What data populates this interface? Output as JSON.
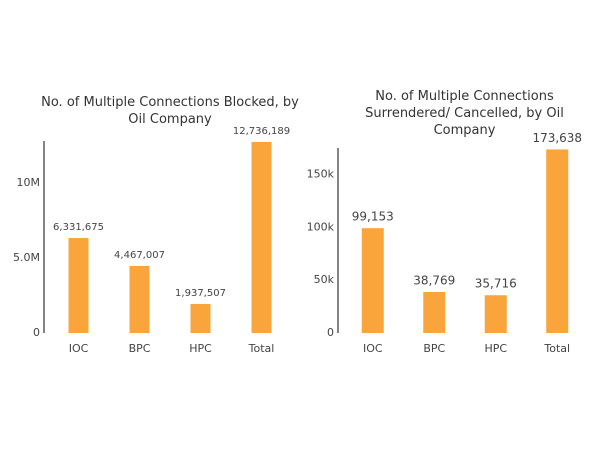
{
  "chart_data": [
    {
      "type": "bar",
      "title": "No. of Multiple Connections Blocked, by Oil Company",
      "categories": [
        "IOC",
        "BPC",
        "HPC",
        "Total"
      ],
      "values": [
        6331675,
        4467007,
        1937507,
        12736189
      ],
      "value_labels": [
        "6,331,675",
        "4,467,007",
        "1,937,507",
        "12,736,189"
      ],
      "color": "#f9a53c",
      "ylim": [
        0,
        12800000
      ],
      "yticks": [
        0,
        {
          "value": 5000000,
          "label": "5.0M"
        },
        {
          "value": 10000000,
          "label": "10M"
        }
      ]
    },
    {
      "type": "bar",
      "title": "No. of Multiple Connections Surrendered/ Cancelled, by Oil Company",
      "categories": [
        "IOC",
        "BPC",
        "HPC",
        "Total"
      ],
      "values": [
        99153,
        38769,
        35716,
        173638
      ],
      "value_labels": [
        "99,153",
        "38,769",
        "35,716",
        "173,638"
      ],
      "color": "#f9a53c",
      "ylim": [
        0,
        175000
      ],
      "yticks": [
        0,
        {
          "value": 50000,
          "label": "50k"
        },
        {
          "value": 100000,
          "label": "100k"
        },
        {
          "value": 150000,
          "label": "150k"
        }
      ]
    }
  ]
}
